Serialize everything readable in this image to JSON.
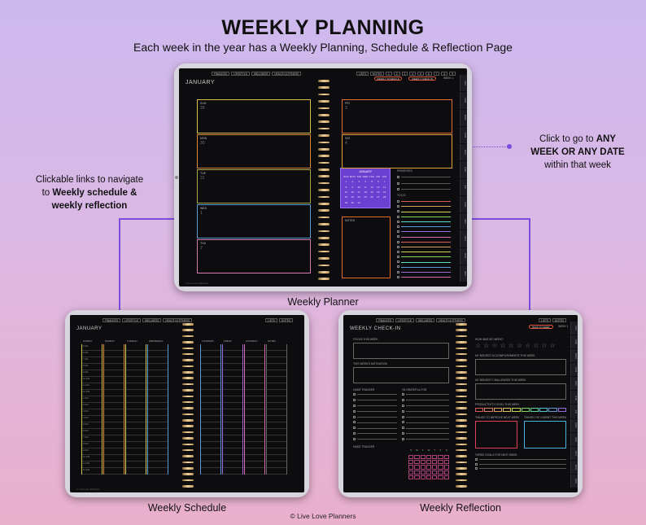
{
  "header": {
    "title": "WEEKLY PLANNING",
    "subtitle": "Each week in the year has a Weekly Planning, Schedule & Reflection Page"
  },
  "callouts": {
    "left_1": "Clickable links to navigate",
    "left_2_pre": "to ",
    "left_2_bold": "Weekly schedule &",
    "left_3": "weekly reflection",
    "right_1_pre": "Click to go to ",
    "right_1_bold": "ANY",
    "right_2": "WEEK OR ANY DATE",
    "right_3": "within that week"
  },
  "captions": {
    "planner": "Weekly Planner",
    "schedule": "Weekly Schedule",
    "reflection": "Weekly Reflection"
  },
  "copyright": "© Live Love Planners",
  "planner": {
    "month": "JANUARY",
    "tabs": [
      "FINANCES",
      "LIFESTYLE",
      "WELLNESS",
      "HEALTH & FITNESS"
    ],
    "right_tabs": [
      "LISTS",
      "NOTES",
      "1",
      "2",
      "3",
      "4",
      "5",
      "6",
      "7",
      "8",
      "9"
    ],
    "schedule_btn": "WEEKLY SCHEDULE",
    "checkin_btn": "WEEKLY CHECK-IN",
    "week_label": "WEEK 1",
    "side_months": [
      "JAN",
      "FEB",
      "MAR",
      "APR",
      "MAY",
      "JUN",
      "JUL",
      "AUG",
      "SEP",
      "OCT",
      "NOV",
      "DEC"
    ],
    "days_left": [
      {
        "label": "SUN",
        "num": "29"
      },
      {
        "label": "MON",
        "num": "30"
      },
      {
        "label": "TUE",
        "num": "31"
      },
      {
        "label": "WED",
        "num": "1"
      },
      {
        "label": "THU",
        "num": "2"
      }
    ],
    "days_right": [
      {
        "label": "FRI",
        "num": "3"
      },
      {
        "label": "SAT",
        "num": "4"
      }
    ],
    "calendar_title": "JANUARY",
    "calendar_head": [
      "SUN",
      "MON",
      "TUE",
      "WED",
      "THU",
      "FRI",
      "SAT"
    ],
    "calendar_days": [
      "1",
      "2",
      "3",
      "4",
      "5",
      "6",
      "7",
      "8",
      "9",
      "10",
      "11",
      "12",
      "13",
      "14",
      "15",
      "16",
      "17",
      "18",
      "19",
      "20",
      "21",
      "22",
      "23",
      "24",
      "25",
      "26",
      "27",
      "28",
      "29",
      "30",
      "31"
    ],
    "priorities_label": "PRIORITIES",
    "todo_label": "TO DO",
    "notes_label": "NOTES",
    "footer": "© Live Love Planners"
  },
  "schedule": {
    "month": "JANUARY",
    "cols_left": [
      "SUNDAY",
      "MONDAY",
      "TUESDAY",
      "WEDNESDAY"
    ],
    "cols_right": [
      "THURSDAY",
      "FRIDAY",
      "SATURDAY",
      "NOTES"
    ],
    "hours": [
      "5 AM",
      "6 AM",
      "7 AM",
      "8 AM",
      "9 AM",
      "10 AM",
      "11 AM",
      "12 PM",
      "1 PM",
      "2 PM",
      "3 PM",
      "4 PM",
      "5 PM",
      "6 PM",
      "7 PM",
      "8 PM",
      "9 PM",
      "10 PM",
      "11 PM",
      "12 AM"
    ],
    "footer": "© Live Love Planners"
  },
  "reflection": {
    "title": "WEEKLY CHECK-IN",
    "focus_label": "FOCUS THIS WEEK",
    "motivation_label": "THIS WEEK'S MOTIVATION",
    "habit_label": "HABIT TRACKER",
    "grateful_label": "I'M GRATEFUL FOR",
    "rate_label": "HOW WAS MY WEEK?",
    "accomplish_label": "MY BIGGEST ACCOMPLISHMENTS THIS WEEK",
    "challenge_label": "MY BIGGEST CHALLENGES THIS WEEK",
    "productivity_label": "PRODUCTIVITY LEVEL THIS WEEK",
    "improve_label": "THINGS TO IMPROVE NEXT WEEK",
    "lessons_label": "THINGS I'VE LEARNT THIS WEEK",
    "next_label": "THREE GOALS FOR NEXT WEEK",
    "back_btn": "BACK TO WEEK",
    "week_label": "WEEK 1",
    "habit_days": [
      "S",
      "M",
      "T",
      "W",
      "T",
      "F",
      "S"
    ]
  }
}
